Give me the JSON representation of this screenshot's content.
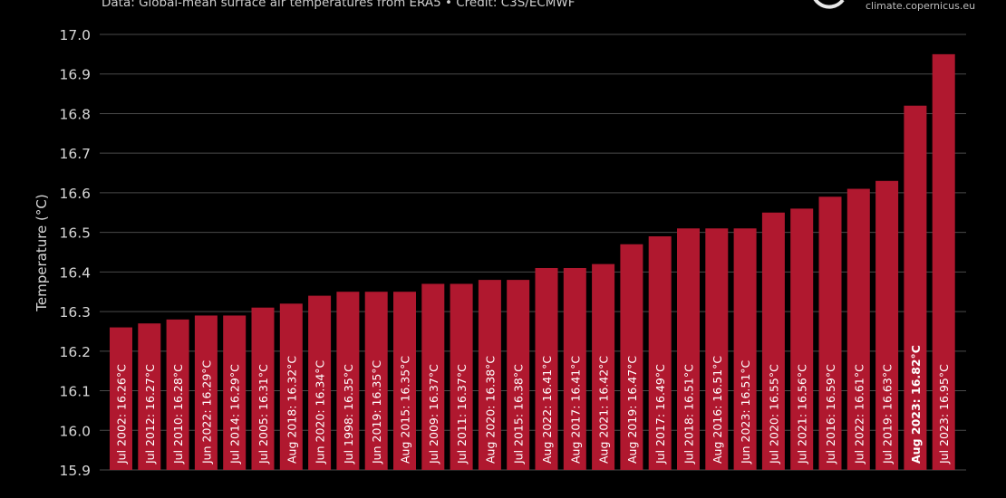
{
  "header": {
    "subtitle": "Data: Global-mean surface air temperatures from ERA5 • Credit: C3S/ECMWF",
    "credit_url": "climate.copernicus.eu"
  },
  "colors": {
    "bar": "#b0182f",
    "grid": "#4a4a4a",
    "text": "#d8d8d8",
    "background": "#000000"
  },
  "chart_data": {
    "type": "bar",
    "ylabel": "Temperature (°C)",
    "ylim": [
      15.9,
      17.0
    ],
    "yticks": [
      "15.9",
      "16.0",
      "16.1",
      "16.2",
      "16.3",
      "16.4",
      "16.5",
      "16.6",
      "16.7",
      "16.8",
      "16.9",
      "17.0"
    ],
    "grid": true,
    "categories": [
      "Jul 2002",
      "Jul 2012",
      "Jul 2010",
      "Jun 2022",
      "Jul 2014",
      "Jul 2005",
      "Aug 2018",
      "Jun 2020",
      "Jul 1998",
      "Jun 2019",
      "Aug 2015",
      "Jul 2009",
      "Jul 2011",
      "Aug 2020",
      "Jul 2015",
      "Aug 2022",
      "Aug 2017",
      "Aug 2021",
      "Aug 2019",
      "Jul 2017",
      "Jul 2018",
      "Aug 2016",
      "Jun 2023",
      "Jul 2020",
      "Jul 2021",
      "Jul 2016",
      "Jul 2022",
      "Jul 2019",
      "Aug 2023",
      "Jul 2023"
    ],
    "values": [
      16.26,
      16.27,
      16.28,
      16.29,
      16.29,
      16.31,
      16.32,
      16.34,
      16.35,
      16.35,
      16.35,
      16.37,
      16.37,
      16.38,
      16.38,
      16.41,
      16.41,
      16.42,
      16.47,
      16.49,
      16.51,
      16.51,
      16.51,
      16.55,
      16.56,
      16.59,
      16.61,
      16.63,
      16.82,
      16.95
    ],
    "labels": [
      "Jul 2002: 16.26°C",
      "Jul 2012: 16.27°C",
      "Jul 2010: 16.28°C",
      "Jun 2022: 16.29°C",
      "Jul 2014: 16.29°C",
      "Jul 2005: 16.31°C",
      "Aug 2018: 16.32°C",
      "Jun 2020: 16.34°C",
      "Jul 1998: 16.35°C",
      "Jun 2019: 16.35°C",
      "Aug 2015: 16.35°C",
      "Jul 2009: 16.37°C",
      "Jul 2011: 16.37°C",
      "Aug 2020: 16.38°C",
      "Jul 2015: 16.38°C",
      "Aug 2022: 16.41°C",
      "Aug 2017: 16.41°C",
      "Aug 2021: 16.42°C",
      "Aug 2019: 16.47°C",
      "Jul 2017: 16.49°C",
      "Jul 2018: 16.51°C",
      "Aug 2016: 16.51°C",
      "Jun 2023: 16.51°C",
      "Jul 2020: 16.55°C",
      "Jul 2021: 16.56°C",
      "Jul 2016: 16.59°C",
      "Jul 2022: 16.61°C",
      "Jul 2019: 16.63°C",
      "Aug 2023: 16.82°C",
      "Jul 2023: 16.95°C"
    ],
    "highlight": "Aug 2023"
  }
}
